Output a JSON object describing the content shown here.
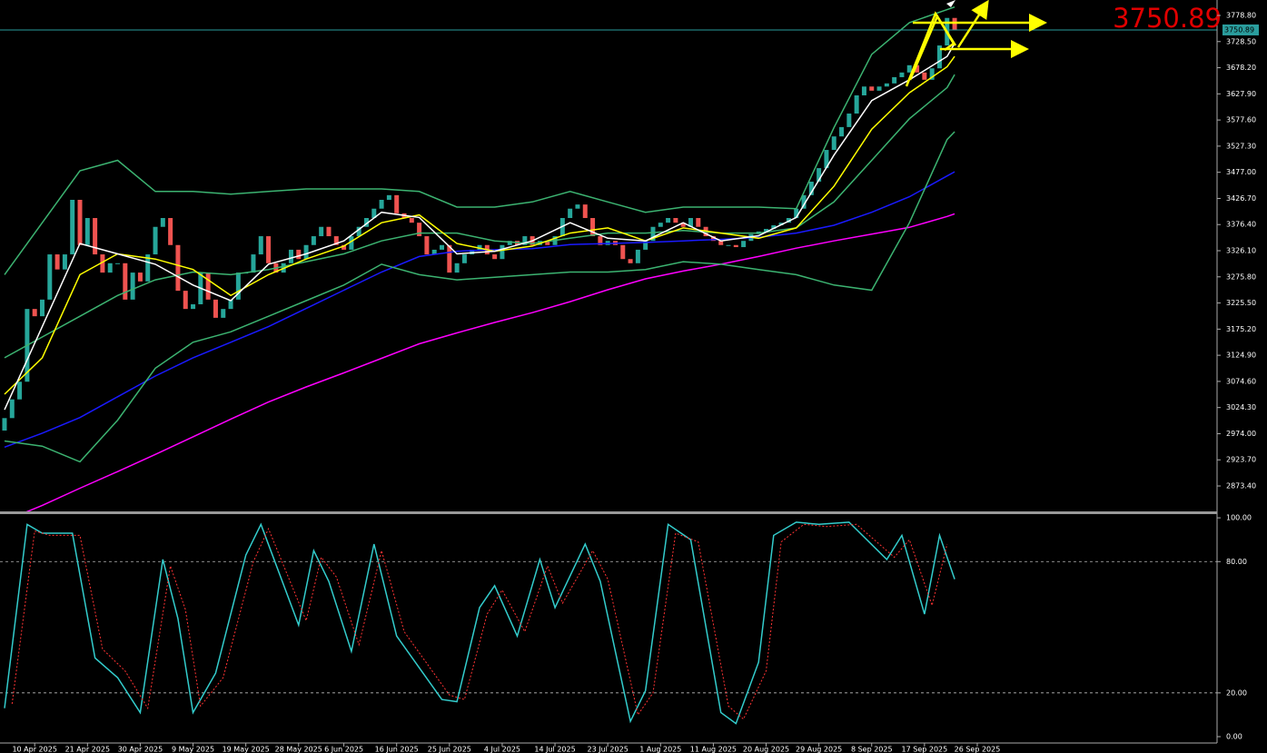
{
  "chart_data": {
    "type": "candlestick",
    "last_price": 3750.89,
    "xlim": [
      -0.6,
      160.8
    ],
    "ylim": [
      2824.5,
      3808.5
    ],
    "yticks": [
      {
        "value": 3778.8,
        "label": "3778.80"
      },
      {
        "value": 3728.5,
        "label": "3728.50"
      },
      {
        "value": 3678.2,
        "label": "3678.20"
      },
      {
        "value": 3627.9,
        "label": "3627.90"
      },
      {
        "value": 3577.6,
        "label": "3577.60"
      },
      {
        "value": 3527.3,
        "label": "3527.30"
      },
      {
        "value": 3477,
        "label": "3477.00"
      },
      {
        "value": 3426.7,
        "label": "3426.70"
      },
      {
        "value": 3376.4,
        "label": "3376.40"
      },
      {
        "value": 3326.1,
        "label": "3326.10"
      },
      {
        "value": 3275.8,
        "label": "3275.80"
      },
      {
        "value": 3225.5,
        "label": "3225.50"
      },
      {
        "value": 3175.2,
        "label": "3175.20"
      },
      {
        "value": 3124.9,
        "label": "3124.90"
      },
      {
        "value": 3074.6,
        "label": "3074.60"
      },
      {
        "value": 3024.3,
        "label": "3024.30"
      },
      {
        "value": 2974,
        "label": "2974.00"
      },
      {
        "value": 2923.7,
        "label": "2923.70"
      },
      {
        "value": 2873.4,
        "label": "2873.40"
      }
    ],
    "xticks": [
      {
        "value": 4,
        "label": "10 Apr 2025"
      },
      {
        "value": 11,
        "label": "21 Apr 2025"
      },
      {
        "value": 18,
        "label": "30 Apr 2025"
      },
      {
        "value": 25,
        "label": "9 May 2025"
      },
      {
        "value": 32,
        "label": "19 May 2025"
      },
      {
        "value": 39,
        "label": "28 May 2025"
      },
      {
        "value": 45,
        "label": "6 Jun 2025"
      },
      {
        "value": 52,
        "label": "16 Jun 2025"
      },
      {
        "value": 59,
        "label": "25 Jun 2025"
      },
      {
        "value": 66,
        "label": "4 Jul 2025"
      },
      {
        "value": 73,
        "label": "14 Jul 2025"
      },
      {
        "value": 80,
        "label": "23 Jul 2025"
      },
      {
        "value": 87,
        "label": "1 Aug 2025"
      },
      {
        "value": 94,
        "label": "11 Aug 2025"
      },
      {
        "value": 101,
        "label": "20 Aug 2025"
      },
      {
        "value": 108,
        "label": "29 Aug 2025"
      },
      {
        "value": 115,
        "label": "8 Sep 2025"
      },
      {
        "value": 122,
        "label": "17 Sep 2025"
      },
      {
        "value": 129,
        "label": "26 Sep 2025"
      }
    ],
    "up_color": "#26a69a",
    "down_color": "#ef5350",
    "open": [
      2980,
      3004,
      3040,
      3074,
      3214,
      3200,
      3232,
      3319,
      3290,
      3319,
      3424,
      3337,
      3389,
      3319,
      3284,
      3302,
      3302,
      3232,
      3284,
      3267,
      3319,
      3372,
      3389,
      3337,
      3249,
      3214,
      3223,
      3284,
      3232,
      3197,
      3214,
      3232,
      3284,
      3284,
      3319,
      3354,
      3302,
      3284,
      3302,
      3328,
      3310,
      3337,
      3354,
      3372,
      3354,
      3337,
      3328,
      3354,
      3372,
      3389,
      3407,
      3424,
      3433,
      3398,
      3389,
      3380,
      3354,
      3319,
      3328,
      3337,
      3284,
      3302,
      3319,
      3328,
      3337,
      3319,
      3310,
      3337,
      3345,
      3337,
      3354,
      3337,
      3345,
      3337,
      3354,
      3389,
      3407,
      3415,
      3389,
      3354,
      3337,
      3345,
      3337,
      3310,
      3302,
      3328,
      3345,
      3372,
      3380,
      3389,
      3380,
      3372,
      3389,
      3372,
      3354,
      3345,
      3337,
      3337,
      3333,
      3345,
      3358,
      3363,
      3368,
      3375,
      3380,
      3389,
      3407,
      3433,
      3459,
      3485,
      3520,
      3546,
      3564,
      3590,
      3625,
      3642,
      3634,
      3642,
      3648,
      3660,
      3669,
      3683,
      3669,
      3655,
      3677,
      3721,
      3774
    ],
    "close": [
      3004,
      3040,
      3074,
      3214,
      3200,
      3232,
      3319,
      3290,
      3319,
      3424,
      3337,
      3389,
      3319,
      3284,
      3302,
      3302,
      3232,
      3284,
      3267,
      3319,
      3372,
      3389,
      3337,
      3249,
      3214,
      3223,
      3284,
      3232,
      3197,
      3214,
      3232,
      3284,
      3284,
      3319,
      3354,
      3302,
      3284,
      3302,
      3328,
      3310,
      3337,
      3354,
      3372,
      3354,
      3337,
      3328,
      3354,
      3372,
      3389,
      3407,
      3424,
      3433,
      3398,
      3389,
      3380,
      3354,
      3319,
      3328,
      3337,
      3284,
      3302,
      3319,
      3328,
      3337,
      3319,
      3310,
      3337,
      3345,
      3337,
      3354,
      3337,
      3345,
      3337,
      3354,
      3389,
      3407,
      3415,
      3389,
      3354,
      3337,
      3345,
      3337,
      3310,
      3302,
      3328,
      3345,
      3372,
      3380,
      3389,
      3380,
      3372,
      3389,
      3372,
      3354,
      3345,
      3337,
      3337,
      3333,
      3345,
      3358,
      3363,
      3368,
      3375,
      3380,
      3389,
      3407,
      3433,
      3459,
      3485,
      3520,
      3546,
      3564,
      3590,
      3625,
      3642,
      3634,
      3642,
      3648,
      3660,
      3669,
      3683,
      3669,
      3655,
      3677,
      3721,
      3774,
      3750.89
    ],
    "overlay_x": [
      0,
      5,
      10,
      15,
      20,
      25,
      30,
      35,
      40,
      45,
      50,
      55,
      60,
      65,
      70,
      75,
      80,
      85,
      90,
      95,
      100,
      105,
      110,
      115,
      120,
      125,
      126
    ],
    "overlays": [
      {
        "color": "#ff00ff",
        "values": [
          2806,
          2836,
          2869,
          2901,
          2934,
          2968,
          3002,
          3035,
          3064,
          3091,
          3119,
          3147,
          3168,
          3188,
          3207,
          3228,
          3251,
          3272,
          3287,
          3300,
          3315,
          3331,
          3345,
          3358,
          3371,
          3392,
          3397
        ]
      },
      {
        "color": "#1a1aff",
        "values": [
          2948,
          2975,
          3005,
          3045,
          3085,
          3120,
          3150,
          3180,
          3215,
          3250,
          3285,
          3315,
          3325,
          3328,
          3330,
          3338,
          3340,
          3342,
          3345,
          3348,
          3352,
          3360,
          3375,
          3400,
          3430,
          3470,
          3478
        ]
      },
      {
        "color": "#3cb371",
        "values": [
          3280,
          3380,
          3480,
          3500,
          3440,
          3440,
          3435,
          3440,
          3445,
          3445,
          3445,
          3440,
          3410,
          3410,
          3420,
          3440,
          3420,
          3400,
          3410,
          3410,
          3410,
          3407,
          3563,
          3704,
          3765,
          3790,
          3795
        ]
      },
      {
        "color": "#3cb371",
        "values": [
          3120,
          3160,
          3200,
          3240,
          3270,
          3285,
          3280,
          3290,
          3305,
          3320,
          3345,
          3360,
          3360,
          3345,
          3340,
          3350,
          3360,
          3360,
          3365,
          3360,
          3360,
          3370,
          3420,
          3500,
          3580,
          3640,
          3665
        ]
      },
      {
        "color": "#3cb371",
        "values": [
          2960,
          2950,
          2920,
          3000,
          3100,
          3150,
          3170,
          3200,
          3230,
          3260,
          3300,
          3280,
          3270,
          3275,
          3280,
          3285,
          3285,
          3290,
          3305,
          3300,
          3290,
          3280,
          3260,
          3250,
          3380,
          3540,
          3555
        ]
      },
      {
        "color": "#ffff00",
        "values": [
          3050,
          3120,
          3280,
          3320,
          3310,
          3290,
          3240,
          3280,
          3310,
          3335,
          3380,
          3395,
          3340,
          3325,
          3335,
          3360,
          3370,
          3345,
          3370,
          3360,
          3350,
          3370,
          3450,
          3560,
          3630,
          3680,
          3700
        ]
      },
      {
        "color": "#ffffff",
        "values": [
          3020,
          3180,
          3340,
          3320,
          3300,
          3260,
          3230,
          3300,
          3320,
          3345,
          3400,
          3390,
          3320,
          3325,
          3345,
          3380,
          3350,
          3345,
          3380,
          3345,
          3355,
          3390,
          3510,
          3615,
          3655,
          3700,
          3725
        ]
      }
    ],
    "oscillator": {
      "ylim": [
        -2.9,
        101.7
      ],
      "yticks": [
        {
          "value": 100,
          "label": "100.00"
        },
        {
          "value": 80,
          "label": "80.00"
        },
        {
          "value": 20,
          "label": "20.00"
        },
        {
          "value": 0,
          "label": "0.00"
        }
      ],
      "levels": [
        80,
        20
      ],
      "series": [
        {
          "color": "#33cccc",
          "dashed": false,
          "x": [
            0,
            3,
            5,
            9,
            12,
            15,
            18,
            21,
            23,
            25,
            28,
            32,
            34,
            39,
            41,
            43,
            46,
            49,
            52,
            58,
            60,
            63,
            65,
            68,
            71,
            73,
            77,
            79,
            83,
            85,
            88,
            91,
            95,
            97,
            100,
            102,
            105,
            108,
            112,
            117,
            119,
            122,
            124,
            126
          ],
          "values": [
            13,
            97,
            93,
            93,
            36,
            27,
            11,
            81,
            54,
            11,
            29,
            83,
            97,
            51,
            85,
            71,
            39,
            88,
            46,
            17,
            16,
            59,
            69,
            46,
            81,
            59,
            88,
            71,
            7,
            21,
            97,
            90,
            11,
            6,
            34,
            92,
            98,
            97,
            98,
            81,
            92,
            56,
            92,
            72
          ]
        },
        {
          "color": "#ff3333",
          "dashed": true,
          "x": [
            1,
            4,
            6,
            10,
            13,
            16,
            19,
            22,
            24,
            26,
            29,
            33,
            35,
            40,
            42,
            44,
            47,
            50,
            53,
            59,
            61,
            64,
            66,
            69,
            72,
            74,
            78,
            80,
            84,
            86,
            89,
            92,
            96,
            98,
            101,
            103,
            106,
            109,
            113,
            118,
            120,
            123,
            125
          ],
          "values": [
            15,
            94,
            92,
            92,
            40,
            30,
            13,
            78,
            58,
            14,
            27,
            80,
            95,
            53,
            82,
            73,
            42,
            85,
            48,
            19,
            17,
            56,
            67,
            48,
            78,
            61,
            85,
            72,
            10,
            20,
            93,
            89,
            14,
            8,
            30,
            89,
            97,
            96,
            97,
            82,
            90,
            60,
            88
          ]
        }
      ]
    }
  }
}
